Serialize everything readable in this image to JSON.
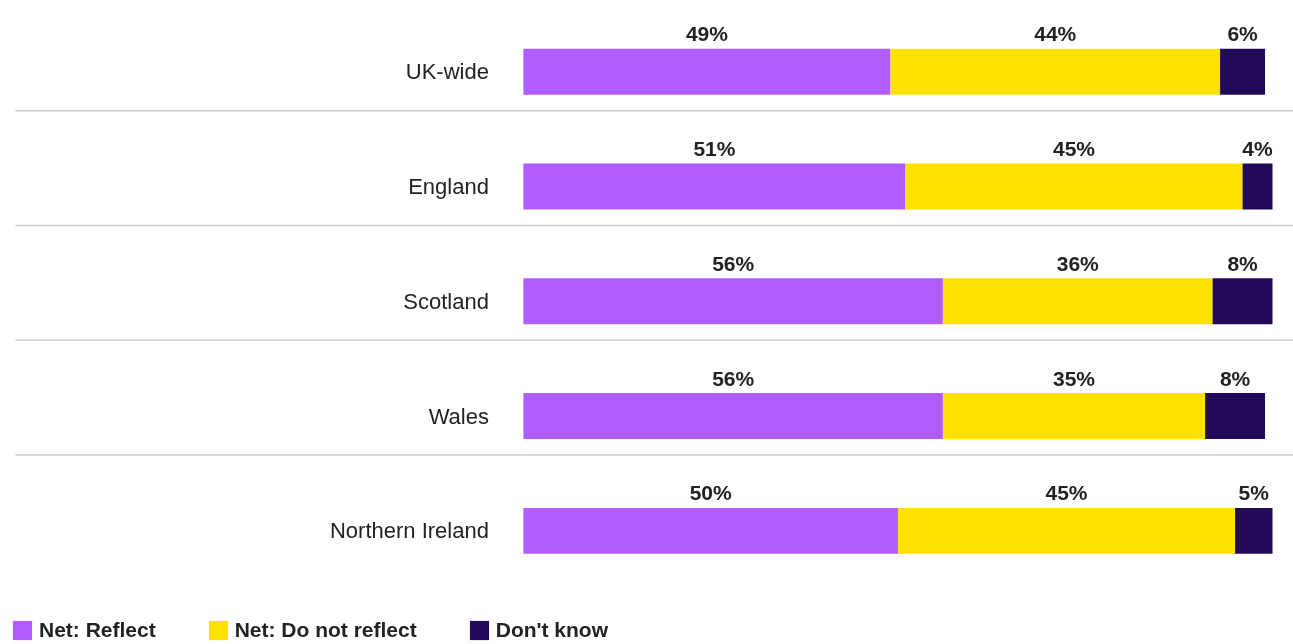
{
  "chart_data": {
    "type": "bar",
    "orientation": "horizontal",
    "stacked": true,
    "grid": "y",
    "legend": "bottom left",
    "categories": [
      "UK-wide",
      "England",
      "Scotland",
      "Wales",
      "Northern Ireland"
    ],
    "series": [
      {
        "name": "Net: Reflect",
        "color": "#b15cff",
        "values": [
          49,
          51,
          56,
          56,
          50
        ],
        "value_labels": [
          "49%",
          "51%",
          "56%",
          "56%",
          "50%"
        ]
      },
      {
        "name": "Net: Do not reflect",
        "color": "#ffe100",
        "values": [
          44,
          45,
          36,
          35,
          45
        ],
        "value_labels": [
          "44%",
          "45%",
          "36%",
          "35%",
          "45%"
        ]
      },
      {
        "name": "Don't know",
        "color": "#230a59",
        "values": [
          6,
          4,
          8,
          8,
          5
        ],
        "value_labels": [
          "6%",
          "4%",
          "8%",
          "8%",
          "5%"
        ]
      }
    ]
  }
}
